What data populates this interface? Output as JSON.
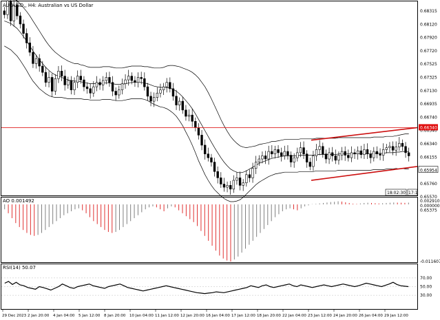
{
  "window": {
    "symbol_title": "AUDUSD,, H4:  Australian vs US Dollar"
  },
  "colors": {
    "background": "#ffffff",
    "frame": "#000000",
    "resistance_line": "#e02020",
    "channel": "#cc1010",
    "bands": "#000000",
    "ao_up": "#808080",
    "ao_down": "#e03030",
    "price_badge_red": "#e01010"
  },
  "price_panel": {
    "y_ticks": [
      "0.68315",
      "0.68120",
      "0.67920",
      "0.67720",
      "0.67525",
      "0.67325",
      "0.67130",
      "0.66935",
      "0.66740",
      "0.66540",
      "0.66340",
      "0.66155",
      "0.65954",
      "0.65760",
      "0.65570",
      "0.65375"
    ],
    "resistance_label": "0.66340",
    "current_price_label": "0.65954",
    "corner_buttons": [
      "18:02:30",
      "17:1"
    ],
    "resistance_level": 0.664,
    "channel": {
      "upper_start": 0.662,
      "upper_end": 0.664,
      "lower_start": 0.6556,
      "lower_end": 0.6578
    }
  },
  "ao_panel": {
    "title": "AO 0.001492",
    "y_ticks": [
      "0.002910",
      "0.000000",
      "-0.011607"
    ]
  },
  "rsi_panel": {
    "title": "RSI(14) 50.07",
    "y_ticks": [
      "70.00",
      "50.00",
      "30.00"
    ]
  },
  "x_axis": {
    "labels": [
      "29 Dec 2023",
      "2 Jan 20:00",
      "4 Jan 04:00",
      "5 Jan 12:00",
      "8 Jan 20:00",
      "10 Jan 04:00",
      "11 Jan 12:00",
      "12 Jan 20:00",
      "16 Jan 04:00",
      "17 Jan 12:00",
      "18 Jan 20:00",
      "22 Jan 04:00",
      "23 Jan 12:00",
      "24 Jan 20:00",
      "26 Jan 04:00",
      "29 Jan 12:00"
    ]
  },
  "chart_data": {
    "type": "candlestick",
    "title": "AUDUSD,, H4:  Australian vs US Dollar",
    "ylim": [
      0.6533,
      0.684
    ],
    "close": [
      0.682,
      0.6842,
      0.681,
      0.6835,
      0.6818,
      0.6805,
      0.679,
      0.6775,
      0.676,
      0.6742,
      0.675,
      0.6738,
      0.6728,
      0.6712,
      0.672,
      0.6698,
      0.6718,
      0.673,
      0.6722,
      0.6708,
      0.6715,
      0.67,
      0.6712,
      0.6722,
      0.6716,
      0.6705,
      0.6702,
      0.6695,
      0.6705,
      0.6712,
      0.6708,
      0.6715,
      0.672,
      0.6712,
      0.6698,
      0.6692,
      0.67,
      0.671,
      0.6716,
      0.6722,
      0.6715,
      0.6712,
      0.672,
      0.6718,
      0.6705,
      0.669,
      0.6682,
      0.6688,
      0.6695,
      0.67,
      0.6705,
      0.6712,
      0.6702,
      0.669,
      0.6676,
      0.6682,
      0.6668,
      0.6658,
      0.666,
      0.665,
      0.664,
      0.6628,
      0.6612,
      0.6598,
      0.6592,
      0.6585,
      0.657,
      0.656,
      0.655,
      0.6545,
      0.6548,
      0.6542,
      0.6556,
      0.656,
      0.6548,
      0.6552,
      0.6565,
      0.656,
      0.6575,
      0.6585,
      0.659,
      0.6595,
      0.659,
      0.6602,
      0.6598,
      0.6605,
      0.66,
      0.6595,
      0.6602,
      0.6596,
      0.6585,
      0.6592,
      0.66,
      0.6608,
      0.6598,
      0.6585,
      0.6578,
      0.6595,
      0.6605,
      0.661,
      0.6598,
      0.659,
      0.66,
      0.6595,
      0.6588,
      0.6596,
      0.6602,
      0.6596,
      0.6592,
      0.66,
      0.6598,
      0.6603,
      0.6597,
      0.6605,
      0.6598,
      0.6592,
      0.6602,
      0.6598,
      0.6596,
      0.6605,
      0.6608,
      0.661,
      0.6604,
      0.6609,
      0.6615,
      0.661,
      0.66,
      0.6595
    ],
    "ma": [
      0.681,
      0.6808,
      0.6806,
      0.6802,
      0.6798,
      0.6792,
      0.6785,
      0.6778,
      0.677,
      0.6762,
      0.6755,
      0.6748,
      0.6742,
      0.6736,
      0.6731,
      0.6727,
      0.6724,
      0.6722,
      0.672,
      0.6718,
      0.6716,
      0.6715,
      0.6714,
      0.6714,
      0.6713,
      0.6712,
      0.6711,
      0.671,
      0.671,
      0.671,
      0.671,
      0.6711,
      0.6711,
      0.6711,
      0.671,
      0.6709,
      0.6709,
      0.6709,
      0.671,
      0.6711,
      0.6712,
      0.6712,
      0.6712,
      0.6712,
      0.6711,
      0.671,
      0.6708,
      0.6706,
      0.6705,
      0.6704,
      0.6704,
      0.6704,
      0.6703,
      0.6701,
      0.6698,
      0.6694,
      0.6689,
      0.6683,
      0.6677,
      0.667,
      0.6662,
      0.6653,
      0.6644,
      0.6635,
      0.6626,
      0.6617,
      0.6608,
      0.66,
      0.6592,
      0.6585,
      0.6579,
      0.6574,
      0.6571,
      0.6569,
      0.6568,
      0.6569,
      0.6571,
      0.6574,
      0.6577,
      0.658,
      0.6583,
      0.6585,
      0.6587,
      0.6589,
      0.6591,
      0.6592,
      0.6593,
      0.6594,
      0.6595,
      0.6595,
      0.6595,
      0.6595,
      0.6595,
      0.6596,
      0.6596,
      0.6596,
      0.6596,
      0.6596,
      0.6597,
      0.6597,
      0.6597,
      0.6597,
      0.6597,
      0.6597,
      0.6597,
      0.6598,
      0.6598,
      0.6598,
      0.6598,
      0.6598,
      0.6598,
      0.6598,
      0.6598,
      0.6598,
      0.6598,
      0.6598,
      0.6599,
      0.6599,
      0.6599,
      0.6599,
      0.66,
      0.66,
      0.66,
      0.6601,
      0.6601,
      0.6602,
      0.6602,
      0.6602
    ],
    "band_width": [
      0.004,
      0.0041,
      0.0042,
      0.0043,
      0.0044,
      0.0045,
      0.0046,
      0.0047,
      0.0048,
      0.0048,
      0.0047,
      0.0046,
      0.0044,
      0.0042,
      0.004,
      0.0038,
      0.0036,
      0.0034,
      0.0032,
      0.0031,
      0.003,
      0.0029,
      0.0028,
      0.0028,
      0.0027,
      0.0027,
      0.0026,
      0.0026,
      0.0026,
      0.0026,
      0.0026,
      0.0026,
      0.0026,
      0.0026,
      0.0026,
      0.0026,
      0.0026,
      0.0026,
      0.0026,
      0.0026,
      0.0026,
      0.0026,
      0.0026,
      0.0026,
      0.0026,
      0.0027,
      0.0028,
      0.0029,
      0.003,
      0.0031,
      0.0032,
      0.0034,
      0.0036,
      0.0038,
      0.004,
      0.0043,
      0.0046,
      0.005,
      0.0054,
      0.0058,
      0.0062,
      0.0066,
      0.0068,
      0.007,
      0.007,
      0.0069,
      0.0067,
      0.0064,
      0.0061,
      0.0058,
      0.0055,
      0.0052,
      0.0049,
      0.0046,
      0.0043,
      0.004,
      0.0037,
      0.0035,
      0.0033,
      0.0031,
      0.003,
      0.0029,
      0.0028,
      0.0027,
      0.0027,
      0.0026,
      0.0026,
      0.0026,
      0.0026,
      0.0026,
      0.0026,
      0.0026,
      0.0026,
      0.0026,
      0.0026,
      0.0026,
      0.0026,
      0.0026,
      0.0026,
      0.0026,
      0.0026,
      0.0026,
      0.0026,
      0.0026,
      0.0026,
      0.0026,
      0.0026,
      0.0026,
      0.0026,
      0.0026,
      0.0026,
      0.0026,
      0.0026,
      0.0026,
      0.0026,
      0.0026,
      0.0026,
      0.0026,
      0.0026,
      0.0026,
      0.0026,
      0.0026,
      0.0026,
      0.0026,
      0.0027,
      0.0027,
      0.0028,
      0.0028
    ],
    "ao": [
      -0.001,
      -0.0018,
      -0.0028,
      -0.0038,
      -0.0046,
      -0.0052,
      -0.0058,
      -0.0062,
      -0.0064,
      -0.0062,
      -0.0058,
      -0.0052,
      -0.0046,
      -0.004,
      -0.0034,
      -0.0028,
      -0.0022,
      -0.0018,
      -0.0014,
      -0.001,
      -0.0008,
      -0.0012,
      -0.0018,
      -0.0026,
      -0.0034,
      -0.004,
      -0.0046,
      -0.0052,
      -0.0056,
      -0.0058,
      -0.0056,
      -0.0052,
      -0.0046,
      -0.004,
      -0.0034,
      -0.0028,
      -0.0022,
      -0.0016,
      -0.001,
      -0.0006,
      -0.0004,
      -0.0006,
      -0.001,
      -0.0014,
      -0.0008,
      -0.0004,
      -0.0006,
      -0.0012,
      -0.0018,
      -0.0024,
      -0.003,
      -0.0036,
      -0.0044,
      -0.0054,
      -0.0064,
      -0.0074,
      -0.0084,
      -0.0094,
      -0.0104,
      -0.011,
      -0.0114,
      -0.0116,
      -0.0112,
      -0.0106,
      -0.0098,
      -0.009,
      -0.0082,
      -0.0074,
      -0.0066,
      -0.0058,
      -0.005,
      -0.0042,
      -0.0034,
      -0.0026,
      -0.002,
      -0.0014,
      -0.001,
      -0.0008,
      -0.001,
      -0.0012,
      -0.0008,
      -0.0004,
      -0.0002,
      0.0002,
      0.0004,
      0.0008,
      0.0012,
      0.0016,
      0.002,
      0.0022,
      0.0026,
      0.0024,
      0.0018,
      0.0012,
      0.0006,
      0.0004,
      0.0008,
      0.0012,
      0.0014,
      0.0012,
      0.001,
      0.0008,
      0.001,
      0.0012,
      0.0014,
      0.0016,
      0.0015,
      0.0014,
      0.0013,
      0.0015
    ],
    "rsi": [
      58,
      62,
      55,
      60,
      54,
      52,
      48,
      46,
      44,
      50,
      48,
      45,
      42,
      46,
      50,
      56,
      52,
      48,
      46,
      50,
      52,
      54,
      56,
      52,
      50,
      48,
      46,
      50,
      52,
      54,
      56,
      52,
      48,
      46,
      44,
      42,
      40,
      42,
      44,
      46,
      48,
      50,
      52,
      50,
      48,
      46,
      44,
      42,
      40,
      38,
      36,
      35,
      34,
      35,
      36,
      38,
      37,
      36,
      38,
      40,
      42,
      44,
      46,
      48,
      52,
      50,
      48,
      52,
      54,
      50,
      48,
      50,
      52,
      54,
      56,
      52,
      50,
      54,
      52,
      50,
      48,
      50,
      52,
      54,
      52,
      50,
      52,
      54,
      56,
      54,
      52,
      50,
      52,
      55,
      58,
      56,
      54,
      52,
      50,
      53,
      56,
      60,
      55,
      52,
      51,
      50
    ]
  }
}
